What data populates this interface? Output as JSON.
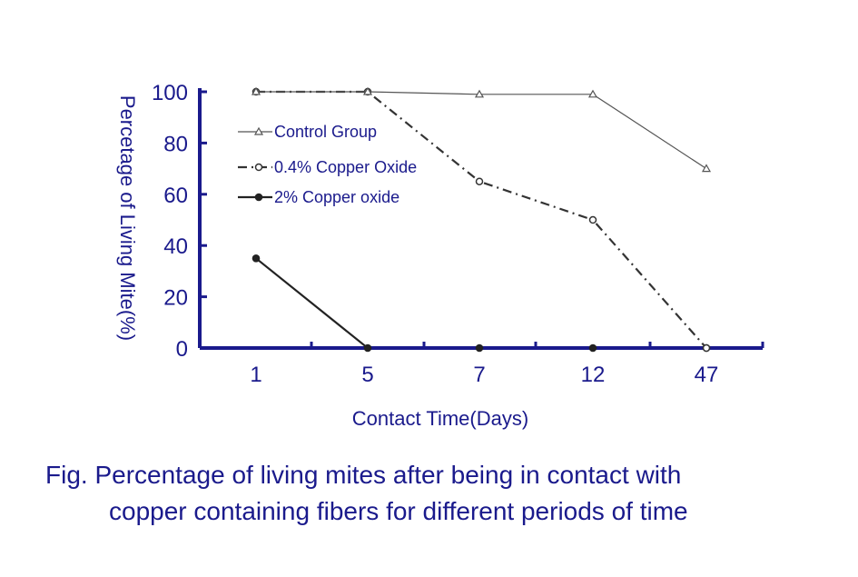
{
  "chart_data": {
    "type": "line",
    "categories": [
      "1",
      "5",
      "7",
      "12",
      "47"
    ],
    "xlabel": "Contact Time(Days)",
    "ylabel": "Percetage of Living Mite(%)",
    "yticks": [
      0,
      20,
      40,
      60,
      80,
      100
    ],
    "ylim": [
      0,
      100
    ],
    "grid": false,
    "legend_position": "top-left inside",
    "series": [
      {
        "name": "Control Group",
        "values": [
          100,
          100,
          99,
          99,
          70
        ],
        "color": "#555555",
        "marker": "open-triangle",
        "line": "solid"
      },
      {
        "name": "0.4%  Copper Oxide",
        "values": [
          100,
          100,
          65,
          50,
          0
        ],
        "color": "#333333",
        "marker": "open-circle",
        "line": "dash-dot"
      },
      {
        "name": "2%  Copper oxide",
        "values": [
          35,
          0,
          0,
          0,
          0
        ],
        "color": "#222222",
        "marker": "filled-circle",
        "line": "solid"
      }
    ]
  },
  "caption": {
    "line1": "Fig. Percentage of living mites after being in contact with",
    "line2": "copper containing fibers for different periods of time"
  },
  "colors": {
    "axis": "#1a1a8c",
    "text": "#1a1a8c"
  }
}
